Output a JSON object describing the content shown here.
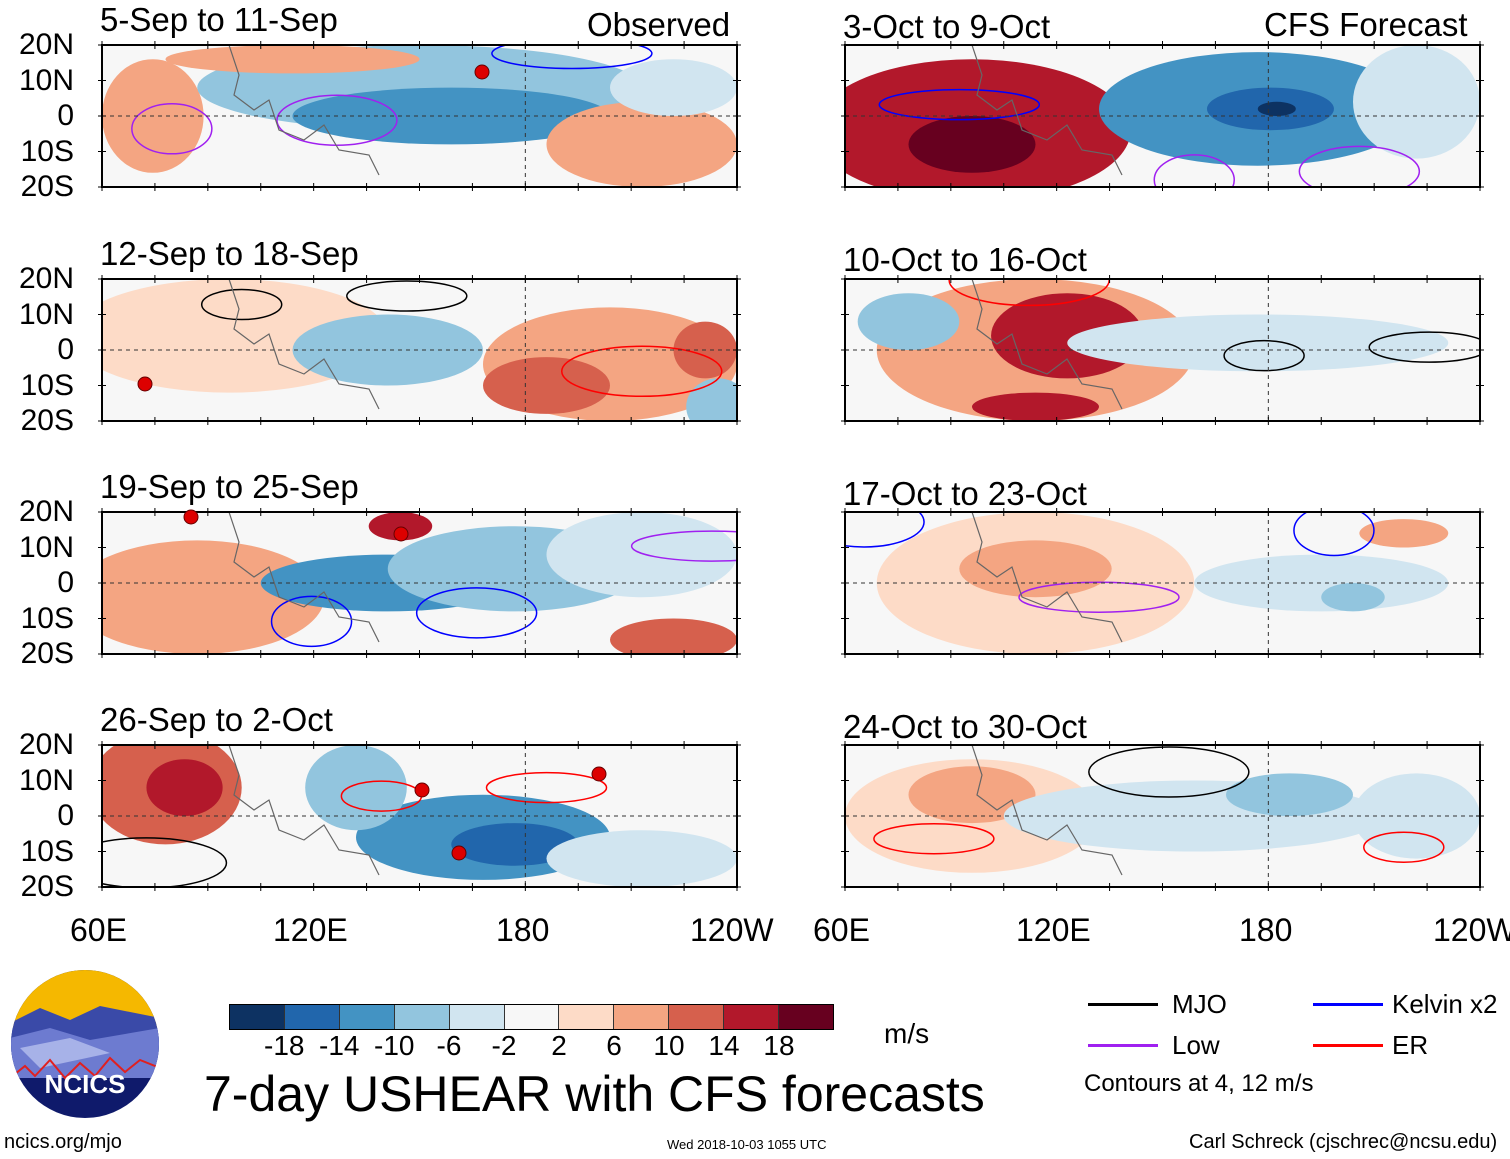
{
  "figure": {
    "title": "7-day USHEAR with CFS forecasts",
    "units": "m/s",
    "website": "ncics.org/mjo",
    "timestamp": "Wed 2018-10-03 1055 UTC",
    "author": "Carl Schreck (cjschrec@ncsu.edu)",
    "logo_text": "NCICS",
    "column_headers": {
      "observed": "Observed",
      "forecast": "CFS Forecast"
    }
  },
  "panels_left": [
    {
      "period": "5-Sep to 11-Sep"
    },
    {
      "period": "12-Sep to 18-Sep"
    },
    {
      "period": "19-Sep to 25-Sep"
    },
    {
      "period": "26-Sep to 2-Oct"
    }
  ],
  "panels_right": [
    {
      "period": "3-Oct to 9-Oct"
    },
    {
      "period": "10-Oct to 16-Oct"
    },
    {
      "period": "17-Oct to 23-Oct"
    },
    {
      "period": "24-Oct to 30-Oct"
    }
  ],
  "lat_labels": [
    "20N",
    "10N",
    "0",
    "10S",
    "20S"
  ],
  "lon_labels": [
    "60E",
    "120E",
    "180",
    "120W"
  ],
  "colorbar": {
    "colors": [
      "#0d3262",
      "#2166ac",
      "#4393c3",
      "#92c5de",
      "#d1e5f0",
      "#f7f7f7",
      "#fddbc7",
      "#f4a582",
      "#d6604d",
      "#b2182b",
      "#67001f"
    ],
    "tick_labels": [
      "-18",
      "-14",
      "-10",
      "-6",
      "-2",
      "2",
      "6",
      "10",
      "14",
      "18"
    ]
  },
  "legend": {
    "items": [
      {
        "label": "MJO",
        "color": "#000000"
      },
      {
        "label": "Kelvin x2",
        "color": "#0000ff"
      },
      {
        "label": "Low",
        "color": "#a020f0"
      },
      {
        "label": "ER",
        "color": "#ff0000"
      }
    ],
    "note": "Contours at 4, 12 m/s"
  }
}
